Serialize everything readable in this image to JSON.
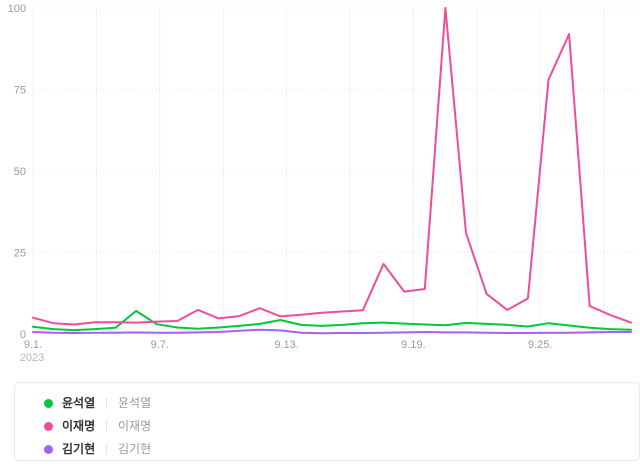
{
  "chart_data": {
    "type": "line",
    "title": "",
    "xlabel": "",
    "ylabel": "",
    "x": [
      "9.1",
      "9.2",
      "9.3",
      "9.4",
      "9.5",
      "9.6",
      "9.7",
      "9.8",
      "9.9",
      "9.10",
      "9.11",
      "9.12",
      "9.13",
      "9.14",
      "9.15",
      "9.16",
      "9.17",
      "9.18",
      "9.19",
      "9.20",
      "9.21",
      "9.22",
      "9.23",
      "9.24",
      "9.25",
      "9.26",
      "9.27",
      "9.28",
      "9.29",
      "9.30"
    ],
    "x_tick_labels": [
      "9.1.",
      "9.7.",
      "9.13.",
      "9.19.",
      "9.25."
    ],
    "x_first_tick_sub": "2023",
    "y_ticks": [
      0,
      25,
      50,
      75,
      100
    ],
    "ylim": [
      0,
      100
    ],
    "grid": {
      "horizontal": "dotted",
      "vertical": "solid-light",
      "vertical_interval_days": 3
    },
    "legend_position": "bottom",
    "series": [
      {
        "name": "윤석열",
        "query": "윤석열",
        "color": "#00c73c",
        "values": [
          2.2,
          1.5,
          1.2,
          1.5,
          1.9,
          7.1,
          3.0,
          2.0,
          1.6,
          2.0,
          2.5,
          3.1,
          4.3,
          2.8,
          2.5,
          2.8,
          3.3,
          3.5,
          3.2,
          2.9,
          2.7,
          3.4,
          3.1,
          2.8,
          2.3,
          3.3,
          2.6,
          1.9,
          1.5,
          1.3
        ]
      },
      {
        "name": "이재명",
        "query": "이재명",
        "color": "#ee4d9b",
        "values": [
          5.0,
          3.3,
          2.9,
          3.6,
          3.6,
          3.5,
          3.8,
          4.0,
          7.4,
          4.8,
          5.5,
          7.9,
          5.4,
          5.9,
          6.5,
          6.9,
          7.3,
          21.5,
          13.0,
          13.8,
          100,
          31,
          12.3,
          7.4,
          10.9,
          78,
          92,
          8.6,
          5.8,
          3.5
        ]
      },
      {
        "name": "김기현",
        "query": "김기현",
        "color": "#a561f4",
        "values": [
          0.6,
          0.4,
          0.3,
          0.4,
          0.4,
          0.5,
          0.4,
          0.4,
          0.5,
          0.6,
          1.0,
          1.3,
          1.1,
          0.4,
          0.2,
          0.3,
          0.3,
          0.4,
          0.5,
          0.6,
          0.5,
          0.5,
          0.4,
          0.3,
          0.3,
          0.4,
          0.4,
          0.5,
          0.6,
          0.6
        ]
      }
    ],
    "axis_label_color": "#9b9b9b",
    "sub_label_color": "#b5b5b5",
    "gridline_color_vertical": "#f1f1f1",
    "gridline_color_horizontal": "#e7e7e7"
  },
  "ui": {
    "legend_separator": "|"
  }
}
